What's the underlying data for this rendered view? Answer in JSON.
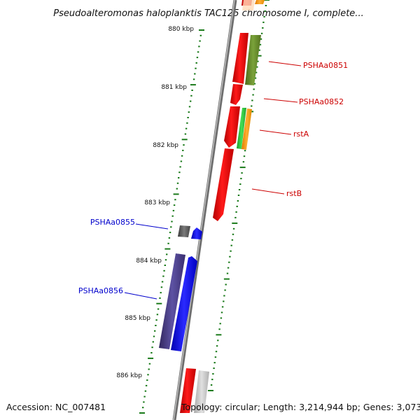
{
  "title": "Pseudoalteromonas haloplanktis TAC125 chromosome I, complete...",
  "footer": {
    "accession": "Accession: NC_007481",
    "topology": "Topology: circular; Length: 3,214,944 bp; Genes: 3,073"
  },
  "scale_labels": [
    "880 kbp",
    "881 kbp",
    "882 kbp",
    "883 kbp",
    "884 kbp",
    "885 kbp",
    "886 kbp"
  ],
  "gene_labels": [
    {
      "name": "PSHAa0851",
      "color": "#cc0000"
    },
    {
      "name": "PSHAa0852",
      "color": "#cc0000"
    },
    {
      "name": "rstA",
      "color": "#cc0000"
    },
    {
      "name": "rstB",
      "color": "#cc0000"
    },
    {
      "name": "PSHAa0855",
      "color": "#0000cc"
    },
    {
      "name": "PSHAa0856",
      "color": "#0000cc"
    }
  ],
  "colors": {
    "backbone": "#8a8a8a",
    "scale_ticks": "#1a7a1a",
    "red_gene": "#ff0000",
    "olive_gene": "#6b8e23",
    "green_gene": "#2ecc40",
    "orange_gene": "#ff9900",
    "blue_gene": "#0000ff",
    "purple_gene": "#4b3f8f",
    "gray_gene": "#555555"
  }
}
